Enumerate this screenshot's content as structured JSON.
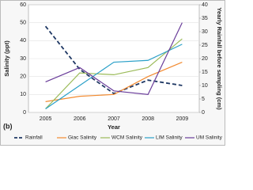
{
  "chart_data": {
    "type": "line",
    "axis_labels": {
      "x": "Year",
      "y": "Salinity (ppt)",
      "y2": "Yearly Rainfall before sampling (cm)"
    },
    "annotation": "(b)",
    "categories": [
      "2005",
      "2006",
      "2007",
      "2008",
      "2009"
    ],
    "series": [
      {
        "name": "Rainfall",
        "color": "#1f3864",
        "line_style": "dashed",
        "axis": "y2",
        "values": [
          32,
          16,
          7,
          12,
          10
        ]
      },
      {
        "name": "Giac Salinity",
        "color": "#f28a30",
        "line_style": "solid",
        "values": [
          6,
          9,
          10,
          20,
          28
        ]
      },
      {
        "name": "WCM Salinity",
        "color": "#9bbb59",
        "line_style": "solid",
        "values": [
          2,
          22,
          21,
          25,
          41
        ]
      },
      {
        "name": "LIM Salinity",
        "color": "#2aa0c8",
        "line_style": "solid",
        "values": [
          2,
          15,
          28,
          29,
          38
        ]
      },
      {
        "name": "UM Salinity",
        "color": "#6a3d9a",
        "line_style": "solid",
        "values": [
          17,
          25,
          12,
          10,
          50
        ]
      }
    ],
    "ylim": [
      0,
      60
    ],
    "yticks": [
      0,
      10,
      20,
      30,
      40,
      50,
      60
    ],
    "y2lim": [
      0,
      40
    ],
    "y2ticks": [
      0,
      5,
      10,
      15,
      20,
      25,
      30,
      35,
      40
    ],
    "grid": true,
    "legend": "bottom"
  }
}
